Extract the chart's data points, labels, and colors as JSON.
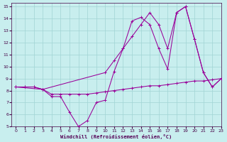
{
  "bg_color": "#c8eeee",
  "grid_color": "#a0d4d4",
  "line_color": "#990099",
  "xlabel": "Windchill (Refroidissement éolien,°C)",
  "xlim": [
    -0.5,
    23
  ],
  "ylim": [
    5,
    15.3
  ],
  "xticks": [
    0,
    1,
    2,
    3,
    4,
    5,
    6,
    7,
    8,
    9,
    10,
    11,
    12,
    13,
    14,
    15,
    16,
    17,
    18,
    19,
    20,
    21,
    22,
    23
  ],
  "yticks": [
    5,
    6,
    7,
    8,
    9,
    10,
    11,
    12,
    13,
    14,
    15
  ],
  "line1_x": [
    0,
    1,
    2,
    3,
    4,
    5,
    6,
    7,
    8,
    9,
    10,
    11,
    12,
    13,
    14,
    15,
    16,
    17,
    18,
    19,
    20,
    21,
    22,
    23
  ],
  "line1_y": [
    8.3,
    8.3,
    8.3,
    8.1,
    7.7,
    7.7,
    7.7,
    7.7,
    7.7,
    7.8,
    7.9,
    8.0,
    8.1,
    8.2,
    8.3,
    8.4,
    8.4,
    8.5,
    8.6,
    8.7,
    8.8,
    8.8,
    8.9,
    9.0
  ],
  "line2_x": [
    0,
    1,
    2,
    3,
    4,
    5,
    6,
    7,
    8,
    9,
    10,
    11,
    12,
    13,
    14,
    15,
    16,
    17,
    18,
    19,
    20,
    21,
    22,
    23
  ],
  "line2_y": [
    8.3,
    8.3,
    8.3,
    8.1,
    7.5,
    7.5,
    6.2,
    5.0,
    5.5,
    7.0,
    7.2,
    9.6,
    11.5,
    13.8,
    14.1,
    13.5,
    11.5,
    9.8,
    14.5,
    15.0,
    12.3,
    9.5,
    8.3,
    9.0
  ],
  "line3_x": [
    0,
    3,
    10,
    11,
    12,
    13,
    14,
    15,
    16,
    17,
    18,
    19,
    20,
    21,
    22,
    23
  ],
  "line3_y": [
    8.3,
    8.1,
    9.5,
    10.5,
    11.5,
    12.5,
    13.5,
    14.5,
    13.5,
    11.5,
    14.5,
    15.0,
    12.3,
    9.5,
    8.3,
    9.0
  ]
}
